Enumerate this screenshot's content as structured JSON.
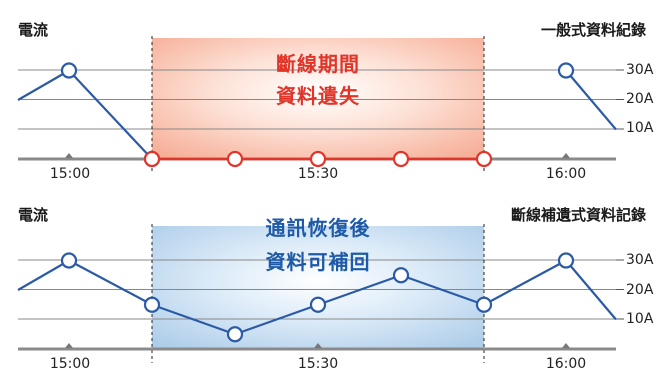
{
  "top_panel": {
    "left_title": "電流",
    "right_title": "一般式資料紀錄",
    "gap_caption": [
      "斷線期間",
      "資料遺失"
    ]
  },
  "bottom_panel": {
    "left_title": "電流",
    "right_title": "斷線補遺式資料記錄",
    "gap_caption": [
      "通訊恢復後",
      "資料可補回"
    ]
  },
  "y_ticks": [
    "30A",
    "20A",
    "10A"
  ],
  "x_ticks": [
    "15:00",
    "15:30",
    "16:00"
  ],
  "colors": {
    "line": "#2b5aa6",
    "lost_marker": "#e2352a",
    "lost_band": "#f7b6a0",
    "recovered_band": "#b6d4ee"
  },
  "chart_data": [
    {
      "type": "line",
      "title": "一般式資料紀錄",
      "x": [
        "14:54",
        "15:00",
        "15:10",
        "15:20",
        "15:30",
        "15:40",
        "15:50",
        "16:00",
        "16:06"
      ],
      "series": [
        {
          "values": [
            20,
            30,
            0,
            null,
            null,
            null,
            null,
            30,
            10
          ]
        },
        {
          "values": [
            null,
            null,
            0,
            0,
            0,
            0,
            0,
            null,
            null
          ]
        }
      ],
      "ylim": [
        0,
        35
      ],
      "ytick_labels": [
        "10A",
        "20A",
        "30A"
      ],
      "xtick_labels": [
        "15:00",
        "15:30",
        "16:00"
      ],
      "grid": true
    },
    {
      "type": "line",
      "title": "斷線補遺式資料記錄",
      "x": [
        "14:54",
        "15:00",
        "15:10",
        "15:20",
        "15:30",
        "15:40",
        "15:50",
        "16:00",
        "16:06"
      ],
      "series": [
        {
          "values": [
            20,
            30,
            15,
            5,
            15,
            25,
            15,
            30,
            10
          ]
        }
      ],
      "ylim": [
        0,
        35
      ],
      "ytick_labels": [
        "10A",
        "20A",
        "30A"
      ],
      "xtick_labels": [
        "15:00",
        "15:30",
        "16:00"
      ],
      "grid": true
    }
  ]
}
